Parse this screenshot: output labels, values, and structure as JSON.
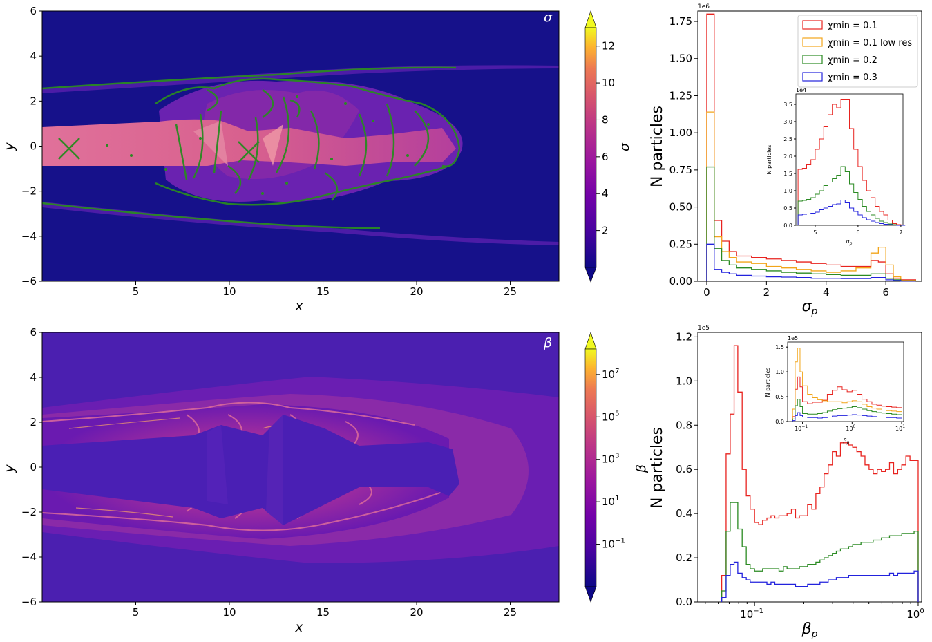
{
  "colors": {
    "red": "#e8231f",
    "orange": "#f2a51a",
    "green": "#2a8a22",
    "blue": "#2222dd",
    "mapbg": "#16118a",
    "betabg": "#4b1fb0"
  },
  "map_sigma": {
    "xlabel": "x",
    "ylabel": "y",
    "corner_label": "σ",
    "x_ticks": [
      "5",
      "10",
      "15",
      "20",
      "25"
    ],
    "y_ticks": [
      "6",
      "4",
      "2",
      "0",
      "−2",
      "−4",
      "−6"
    ],
    "xlim": [
      0,
      27.6
    ],
    "ylim": [
      -6,
      6
    ],
    "x_tick_values": [
      5,
      10,
      15,
      20,
      25
    ],
    "y_tick_values": [
      6,
      4,
      2,
      0,
      -2,
      -4,
      -6
    ],
    "colorbar": {
      "label": "σ",
      "ticks": [
        "12",
        "10",
        "8",
        "6",
        "4",
        "2"
      ],
      "tick_values": [
        12,
        10,
        8,
        6,
        4,
        2
      ],
      "range": [
        0,
        13
      ],
      "colormap": "plasma"
    }
  },
  "map_beta": {
    "xlabel": "x",
    "ylabel": "y",
    "corner_label": "β",
    "x_ticks": [
      "5",
      "10",
      "15",
      "20",
      "25"
    ],
    "y_ticks": [
      "6",
      "4",
      "2",
      "0",
      "−2",
      "−4",
      "−6"
    ],
    "xlim": [
      0,
      27.6
    ],
    "ylim": [
      -6,
      6
    ],
    "x_tick_values": [
      5,
      10,
      15,
      20,
      25
    ],
    "y_tick_values": [
      6,
      4,
      2,
      0,
      -2,
      -4,
      -6
    ],
    "colorbar": {
      "label": "β",
      "ticks": [
        "10",
        "10",
        "10",
        "10",
        "10"
      ],
      "tick_exponents": [
        "7",
        "5",
        "3",
        "1",
        "−1"
      ],
      "scale": "log",
      "colormap": "plasma"
    }
  },
  "chart_data": [
    {
      "type": "step-histogram",
      "xlabel": "σp",
      "ylabel": "N particles",
      "scale_label": "1e6",
      "xlim": [
        -0.3,
        7.2
      ],
      "ylim": [
        0,
        1.82
      ],
      "x_ticks": [
        "0",
        "2",
        "4",
        "6"
      ],
      "y_ticks": [
        "0.00",
        "0.25",
        "0.50",
        "0.75",
        "1.00",
        "1.25",
        "1.50",
        "1.75"
      ],
      "legend": [
        "χmin = 0.1",
        "χmin = 0.1 low res",
        "χmin = 0.2",
        "χmin = 0.3"
      ],
      "legend_position": "top-right",
      "bin_edges": [
        0,
        0.25,
        0.5,
        0.75,
        1,
        1.5,
        2,
        2.5,
        3,
        3.5,
        4,
        4.5,
        5,
        5.5,
        5.75,
        6,
        6.25,
        6.5,
        7
      ],
      "series": [
        {
          "name": "χmin = 0.1",
          "color": "red",
          "values": [
            1.8,
            0.41,
            0.27,
            0.2,
            0.17,
            0.16,
            0.15,
            0.14,
            0.13,
            0.12,
            0.11,
            0.1,
            0.1,
            0.14,
            0.13,
            0.05,
            0.02,
            0.01
          ]
        },
        {
          "name": "χmin = 0.1 low res",
          "color": "orange",
          "values": [
            1.14,
            0.3,
            0.2,
            0.16,
            0.13,
            0.12,
            0.1,
            0.09,
            0.08,
            0.07,
            0.06,
            0.07,
            0.09,
            0.19,
            0.23,
            0.11,
            0.03,
            0.005
          ]
        },
        {
          "name": "χmin = 0.2",
          "color": "green",
          "values": [
            0.77,
            0.22,
            0.14,
            0.11,
            0.09,
            0.08,
            0.07,
            0.06,
            0.055,
            0.05,
            0.045,
            0.04,
            0.04,
            0.05,
            0.05,
            0.02,
            0.01,
            0.003
          ]
        },
        {
          "name": "χmin = 0.3",
          "color": "blue",
          "values": [
            0.25,
            0.08,
            0.06,
            0.05,
            0.04,
            0.035,
            0.03,
            0.028,
            0.025,
            0.02,
            0.02,
            0.018,
            0.018,
            0.025,
            0.025,
            0.01,
            0.005,
            0.001
          ]
        }
      ],
      "inset": {
        "xlabel": "σp",
        "ylabel": "N particles",
        "scale_label": "1e4",
        "xlim": [
          4.55,
          7.05
        ],
        "ylim": [
          0,
          3.8
        ],
        "x_ticks": [
          "5",
          "6",
          "7"
        ],
        "y_ticks": [
          "0.0",
          "0.5",
          "1.0",
          "1.5",
          "2.0",
          "2.5",
          "3.0",
          "3.5"
        ],
        "x": [
          4.6,
          4.7,
          4.8,
          4.9,
          5.0,
          5.1,
          5.2,
          5.3,
          5.4,
          5.5,
          5.6,
          5.7,
          5.8,
          5.9,
          6.0,
          6.1,
          6.2,
          6.3,
          6.4,
          6.5,
          6.6,
          6.7,
          6.8,
          6.9,
          7.0
        ],
        "series": [
          {
            "name": "χmin = 0.1",
            "color": "red",
            "values": [
              1.62,
              1.65,
              1.75,
              1.9,
              2.2,
              2.5,
              2.85,
              3.2,
              3.5,
              3.4,
              3.65,
              3.65,
              2.8,
              2.2,
              1.7,
              1.3,
              1.0,
              0.8,
              0.55,
              0.4,
              0.3,
              0.15,
              0.05,
              0.02,
              0
            ]
          },
          {
            "name": "χmin = 0.2",
            "color": "green",
            "values": [
              0.7,
              0.72,
              0.75,
              0.8,
              0.9,
              1.0,
              1.15,
              1.25,
              1.35,
              1.45,
              1.7,
              1.55,
              1.2,
              0.95,
              0.75,
              0.55,
              0.4,
              0.3,
              0.2,
              0.12,
              0.08,
              0.04,
              0.02,
              0.01,
              0
            ]
          },
          {
            "name": "χmin = 0.3",
            "color": "blue",
            "values": [
              0.3,
              0.32,
              0.33,
              0.35,
              0.38,
              0.45,
              0.5,
              0.55,
              0.6,
              0.62,
              0.73,
              0.65,
              0.5,
              0.4,
              0.3,
              0.22,
              0.16,
              0.12,
              0.08,
              0.05,
              0.03,
              0.02,
              0.01,
              0,
              0
            ]
          }
        ]
      }
    },
    {
      "type": "step-histogram",
      "xlabel": "βp",
      "ylabel": "N particles",
      "scale_label": "1e5",
      "xscale": "log",
      "xlim": [
        0.045,
        1.05
      ],
      "ylim": [
        0,
        1.22
      ],
      "x_ticks": [
        "10",
        "10"
      ],
      "x_tick_exponents": [
        "−1",
        "0"
      ],
      "y_ticks": [
        "0.0",
        "0.2",
        "0.4",
        "0.6",
        "0.8",
        "1.0",
        "1.2"
      ],
      "x": [
        0.063,
        0.067,
        0.071,
        0.075,
        0.079,
        0.084,
        0.089,
        0.094,
        0.1,
        0.106,
        0.112,
        0.119,
        0.126,
        0.133,
        0.141,
        0.15,
        0.158,
        0.168,
        0.178,
        0.188,
        0.2,
        0.211,
        0.224,
        0.237,
        0.251,
        0.266,
        0.282,
        0.299,
        0.316,
        0.335,
        0.355,
        0.376,
        0.398,
        0.422,
        0.447,
        0.473,
        0.501,
        0.531,
        0.562,
        0.596,
        0.631,
        0.668,
        0.708,
        0.75,
        0.794,
        0.841,
        0.891,
        0.944
      ],
      "series": [
        {
          "name": "χmin = 0.1",
          "color": "red",
          "values": [
            0.12,
            0.67,
            0.85,
            1.16,
            0.95,
            0.6,
            0.48,
            0.42,
            0.36,
            0.35,
            0.37,
            0.38,
            0.39,
            0.38,
            0.39,
            0.39,
            0.4,
            0.42,
            0.38,
            0.39,
            0.39,
            0.44,
            0.42,
            0.49,
            0.52,
            0.58,
            0.62,
            0.68,
            0.66,
            0.72,
            0.72,
            0.71,
            0.7,
            0.68,
            0.66,
            0.62,
            0.6,
            0.58,
            0.6,
            0.59,
            0.6,
            0.63,
            0.58,
            0.6,
            0.62,
            0.66,
            0.64,
            0.64
          ]
        },
        {
          "name": "χmin = 0.2",
          "color": "green",
          "values": [
            0.05,
            0.32,
            0.45,
            0.45,
            0.33,
            0.25,
            0.17,
            0.15,
            0.14,
            0.14,
            0.15,
            0.15,
            0.15,
            0.15,
            0.14,
            0.16,
            0.15,
            0.15,
            0.15,
            0.16,
            0.16,
            0.17,
            0.17,
            0.18,
            0.19,
            0.2,
            0.21,
            0.22,
            0.23,
            0.24,
            0.24,
            0.25,
            0.26,
            0.26,
            0.27,
            0.27,
            0.27,
            0.28,
            0.28,
            0.29,
            0.29,
            0.3,
            0.3,
            0.3,
            0.31,
            0.31,
            0.31,
            0.32
          ]
        },
        {
          "name": "χmin = 0.3",
          "color": "blue",
          "values": [
            0.02,
            0.12,
            0.17,
            0.18,
            0.13,
            0.11,
            0.1,
            0.09,
            0.09,
            0.09,
            0.09,
            0.08,
            0.09,
            0.08,
            0.08,
            0.08,
            0.08,
            0.08,
            0.07,
            0.07,
            0.07,
            0.08,
            0.08,
            0.08,
            0.09,
            0.09,
            0.1,
            0.1,
            0.11,
            0.11,
            0.11,
            0.12,
            0.12,
            0.12,
            0.12,
            0.12,
            0.12,
            0.12,
            0.12,
            0.12,
            0.12,
            0.13,
            0.12,
            0.13,
            0.13,
            0.13,
            0.13,
            0.14
          ]
        }
      ],
      "inset": {
        "xlabel": "βp",
        "ylabel": "N particles",
        "scale_label": "1e5",
        "xscale": "log",
        "xlim": [
          0.05,
          11
        ],
        "ylim": [
          0,
          1.6
        ],
        "x_ticks": [
          "10",
          "10",
          "10"
        ],
        "x_tick_exponents": [
          "−1",
          "0",
          "1"
        ],
        "y_ticks": [
          "0.0",
          "0.5",
          "1.0",
          "1.5"
        ],
        "x": [
          0.063,
          0.071,
          0.079,
          0.089,
          0.1,
          0.126,
          0.158,
          0.2,
          0.251,
          0.316,
          0.398,
          0.501,
          0.631,
          0.794,
          1.0,
          1.26,
          1.58,
          2.0,
          2.51,
          3.16,
          3.98,
          5.01,
          6.31,
          7.94
        ],
        "series": [
          {
            "name": "χmin = 0.1",
            "color": "red",
            "values": [
              0.1,
              0.65,
              0.9,
              0.7,
              0.4,
              0.36,
              0.39,
              0.39,
              0.43,
              0.55,
              0.63,
              0.7,
              0.64,
              0.6,
              0.63,
              0.55,
              0.45,
              0.4,
              0.35,
              0.33,
              0.31,
              0.3,
              0.29,
              0.28
            ]
          },
          {
            "name": "χmin = 0.1 low res",
            "color": "orange",
            "values": [
              0.25,
              1.2,
              1.48,
              1.0,
              0.72,
              0.55,
              0.48,
              0.44,
              0.42,
              0.4,
              0.4,
              0.4,
              0.38,
              0.4,
              0.42,
              0.4,
              0.35,
              0.3,
              0.27,
              0.25,
              0.23,
              0.22,
              0.21,
              0.2
            ]
          },
          {
            "name": "χmin = 0.2",
            "color": "green",
            "values": [
              0.05,
              0.32,
              0.45,
              0.3,
              0.16,
              0.15,
              0.15,
              0.16,
              0.18,
              0.21,
              0.24,
              0.26,
              0.27,
              0.28,
              0.3,
              0.28,
              0.25,
              0.22,
              0.2,
              0.18,
              0.17,
              0.16,
              0.15,
              0.14
            ]
          },
          {
            "name": "χmin = 0.3",
            "color": "blue",
            "values": [
              0.02,
              0.12,
              0.18,
              0.12,
              0.09,
              0.08,
              0.08,
              0.07,
              0.08,
              0.09,
              0.11,
              0.12,
              0.12,
              0.13,
              0.14,
              0.13,
              0.12,
              0.11,
              0.1,
              0.09,
              0.09,
              0.08,
              0.08,
              0.07
            ]
          }
        ]
      }
    }
  ]
}
